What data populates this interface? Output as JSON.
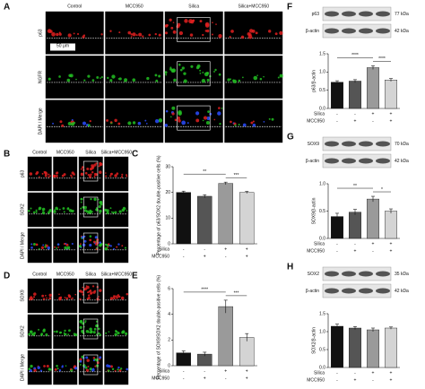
{
  "panels": {
    "A": {
      "letter": "A",
      "columns": [
        "Control",
        "MCC950",
        "Silica",
        "Silica+MCC950"
      ],
      "rows": [
        "p63",
        "NGFR",
        "DAPI / Merge"
      ],
      "scale_bar": "50 μm"
    },
    "B": {
      "letter": "B",
      "columns": [
        "Control",
        "MCC950",
        "Silica",
        "Silica+MCC950"
      ],
      "rows": [
        "p63",
        "SOX2",
        "DAPI / Merge"
      ]
    },
    "D": {
      "letter": "D",
      "columns": [
        "Control",
        "MCC950",
        "Silica",
        "Silica+MCC950"
      ],
      "rows": [
        "SOX9",
        "SOX2",
        "DAPI / Merge"
      ]
    }
  },
  "chart_data": [
    {
      "panel": "C",
      "type": "bar",
      "y_label": "Percentage of p63/SOX2 double-positive cells (%)",
      "values": [
        20,
        18.5,
        23.5,
        20
      ],
      "errors": [
        0.5,
        0.6,
        0.5,
        0.4
      ],
      "colors": [
        "#111111",
        "#555555",
        "#9a9a9a",
        "#d4d4d4"
      ],
      "ylim": [
        0,
        30
      ],
      "yticks": [
        0,
        10,
        20,
        30
      ],
      "conditions": [
        {
          "name": "Silica",
          "signs": [
            "-",
            "-",
            "+",
            "+"
          ]
        },
        {
          "name": "MCC950",
          "signs": [
            "-",
            "+",
            "-",
            "+"
          ]
        }
      ],
      "significance": [
        {
          "pair": [
            0,
            2
          ],
          "label": "**"
        },
        {
          "pair": [
            2,
            3
          ],
          "label": "***"
        }
      ]
    },
    {
      "panel": "E",
      "type": "bar",
      "y_label": "Percentage of SOX9/SOX2 double-positive cells (%)",
      "values": [
        1,
        0.9,
        4.6,
        2.2
      ],
      "errors": [
        0.15,
        0.15,
        0.5,
        0.3
      ],
      "colors": [
        "#111111",
        "#555555",
        "#9a9a9a",
        "#d4d4d4"
      ],
      "ylim": [
        0,
        6
      ],
      "yticks": [
        0,
        2,
        4,
        6
      ],
      "conditions": [
        {
          "name": "Silica",
          "signs": [
            "-",
            "-",
            "+",
            "+"
          ]
        },
        {
          "name": "MCC950",
          "signs": [
            "-",
            "+",
            "-",
            "+"
          ]
        }
      ],
      "significance": [
        {
          "pair": [
            0,
            2
          ],
          "label": "****"
        },
        {
          "pair": [
            2,
            3
          ],
          "label": "***"
        }
      ]
    },
    {
      "panel": "F",
      "type": "bar",
      "y_label": "p63/β-actin",
      "blots": [
        {
          "protein": "p63",
          "size": "77 kDa"
        },
        {
          "protein": "β-actin",
          "size": "42 kDa"
        }
      ],
      "values": [
        0.72,
        0.75,
        1.12,
        0.78
      ],
      "errors": [
        0.04,
        0.04,
        0.05,
        0.04
      ],
      "colors": [
        "#111111",
        "#555555",
        "#9a9a9a",
        "#d4d4d4"
      ],
      "ylim": [
        0,
        1.5
      ],
      "yticks": [
        {
          "value": 0,
          "label": "0.0"
        },
        {
          "value": 0.5,
          "label": "0.5"
        },
        {
          "value": 1,
          "label": "1.0"
        },
        {
          "value": 1.5,
          "label": "1.5"
        }
      ],
      "conditions": [
        {
          "name": "Silica",
          "signs": [
            "-",
            "-",
            "+",
            "+"
          ]
        },
        {
          "name": "MCC950",
          "signs": [
            "-",
            "+",
            "-",
            "+"
          ]
        }
      ],
      "significance": [
        {
          "pair": [
            0,
            2
          ],
          "label": "****"
        },
        {
          "pair": [
            2,
            3
          ],
          "label": "****"
        }
      ]
    },
    {
      "panel": "G",
      "type": "bar",
      "y_label": "SOX9/β-actin",
      "blots": [
        {
          "protein": "SOX9",
          "size": "70 kDa"
        },
        {
          "protein": "β-actin",
          "size": "42 kDa"
        }
      ],
      "values": [
        0.4,
        0.48,
        0.72,
        0.5
      ],
      "errors": [
        0.06,
        0.05,
        0.05,
        0.04
      ],
      "colors": [
        "#111111",
        "#555555",
        "#9a9a9a",
        "#d4d4d4"
      ],
      "ylim": [
        0,
        1
      ],
      "yticks": [
        {
          "value": 0,
          "label": "0.0"
        },
        {
          "value": 0.5,
          "label": "0.5"
        },
        {
          "value": 1,
          "label": "1.0"
        }
      ],
      "conditions": [
        {
          "name": "Silica",
          "signs": [
            "-",
            "-",
            "+",
            "+"
          ]
        },
        {
          "name": "MCC950",
          "signs": [
            "-",
            "+",
            "-",
            "+"
          ]
        }
      ],
      "significance": [
        {
          "pair": [
            0,
            2
          ],
          "label": "**"
        },
        {
          "pair": [
            2,
            3
          ],
          "label": "*"
        }
      ]
    },
    {
      "panel": "H",
      "type": "bar",
      "y_label": "SOX2/β-actin",
      "blots": [
        {
          "protein": "SOX2",
          "size": "35 kDa"
        },
        {
          "protein": "β-actin",
          "size": "42 kDa"
        }
      ],
      "values": [
        1.15,
        1.1,
        1.05,
        1.1
      ],
      "errors": [
        0.06,
        0.04,
        0.05,
        0.03
      ],
      "colors": [
        "#111111",
        "#555555",
        "#9a9a9a",
        "#d4d4d4"
      ],
      "ylim": [
        0,
        1.5
      ],
      "yticks": [
        {
          "value": 0,
          "label": "0.0"
        },
        {
          "value": 0.5,
          "label": "0.5"
        },
        {
          "value": 1,
          "label": "1.0"
        },
        {
          "value": 1.5,
          "label": "1.5"
        }
      ],
      "conditions": [
        {
          "name": "Silica",
          "signs": [
            "-",
            "-",
            "+",
            "+"
          ]
        },
        {
          "name": "MCC950",
          "signs": [
            "-",
            "+",
            "-",
            "+"
          ]
        }
      ],
      "significance": []
    }
  ]
}
